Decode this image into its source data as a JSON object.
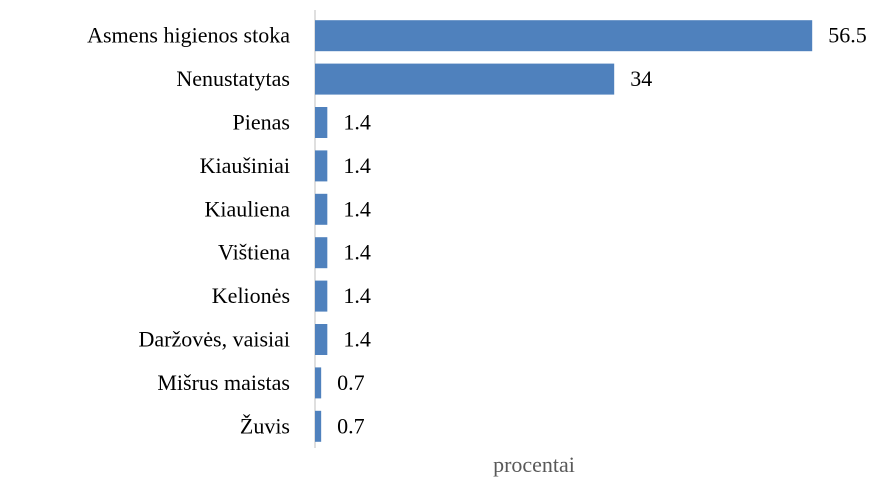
{
  "chart_data": {
    "type": "bar",
    "orientation": "horizontal",
    "x_label": "procentai",
    "categories": [
      "Asmens higienos stoka",
      "Nenustatytas",
      "Pienas",
      "Kiaušiniai",
      "Kiauliena",
      "Vištiena",
      "Kelionės",
      "Daržovės, vaisiai",
      "Mišrus maistas",
      "Žuvis"
    ],
    "values": [
      56.5,
      34,
      1.4,
      1.4,
      1.4,
      1.4,
      1.4,
      1.4,
      0.7,
      0.7
    ],
    "color": "#4f81bd",
    "xlim": [
      0,
      60
    ]
  }
}
